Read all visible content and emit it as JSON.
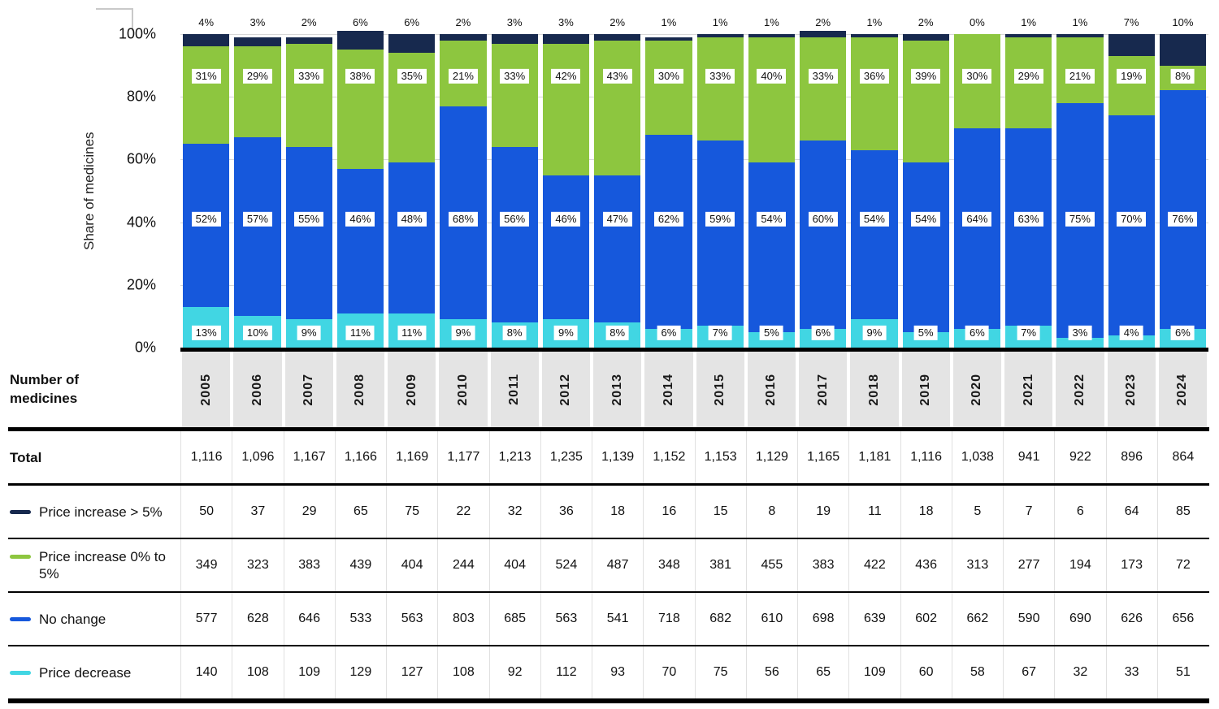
{
  "chart_data": {
    "type": "bar",
    "stacked": true,
    "title": "",
    "xlabel": "",
    "ylabel": "Share of medicines",
    "ylim": [
      0,
      100
    ],
    "ytick_labels": [
      "100%",
      "80%",
      "60%",
      "40%",
      "20%",
      "0%"
    ],
    "grid": true,
    "categories": [
      "2005",
      "2006",
      "2007",
      "2008",
      "2009",
      "2010",
      "2011",
      "2012",
      "2013",
      "2014",
      "2015",
      "2016",
      "2017",
      "2018",
      "2019",
      "2020",
      "2021",
      "2022",
      "2023",
      "2024"
    ],
    "series": [
      {
        "name": "Price decrease",
        "color": "#41d6e3",
        "share_pct": [
          13,
          10,
          9,
          11,
          11,
          9,
          8,
          9,
          8,
          6,
          7,
          5,
          6,
          9,
          5,
          6,
          7,
          3,
          4,
          6
        ],
        "counts": [
          140,
          108,
          109,
          129,
          127,
          108,
          92,
          112,
          93,
          70,
          75,
          56,
          65,
          109,
          60,
          58,
          67,
          32,
          33,
          51
        ]
      },
      {
        "name": "No change",
        "color": "#1658dc",
        "share_pct": [
          52,
          57,
          55,
          46,
          48,
          68,
          56,
          46,
          47,
          62,
          59,
          54,
          60,
          54,
          54,
          64,
          63,
          75,
          70,
          76
        ],
        "counts": [
          577,
          628,
          646,
          533,
          563,
          803,
          685,
          563,
          541,
          718,
          682,
          610,
          698,
          639,
          602,
          662,
          590,
          690,
          626,
          656
        ]
      },
      {
        "name": "Price increase 0% to 5%",
        "color": "#8dc63f",
        "share_pct": [
          31,
          29,
          33,
          38,
          35,
          21,
          33,
          42,
          43,
          30,
          33,
          40,
          33,
          36,
          39,
          30,
          29,
          21,
          19,
          8
        ],
        "counts": [
          349,
          323,
          383,
          439,
          404,
          244,
          404,
          524,
          487,
          348,
          381,
          455,
          383,
          422,
          436,
          313,
          277,
          194,
          173,
          72
        ]
      },
      {
        "name": "Price increase > 5%",
        "color": "#17294e",
        "share_pct": [
          4,
          3,
          2,
          6,
          6,
          2,
          3,
          3,
          2,
          1,
          1,
          1,
          2,
          1,
          2,
          0,
          1,
          1,
          7,
          10
        ],
        "counts": [
          50,
          37,
          29,
          65,
          75,
          22,
          32,
          36,
          18,
          16,
          15,
          8,
          19,
          11,
          18,
          5,
          7,
          6,
          64,
          85
        ]
      }
    ]
  },
  "table": {
    "header_label": "Number of medicines",
    "total_row": {
      "label": "Total",
      "values": [
        "1,116",
        "1,096",
        "1,167",
        "1,166",
        "1,169",
        "1,177",
        "1,213",
        "1,235",
        "1,139",
        "1,152",
        "1,153",
        "1,129",
        "1,165",
        "1,181",
        "1,116",
        "1,038",
        "941",
        "922",
        "896",
        "864"
      ]
    },
    "category_rows_order": [
      "Price increase > 5%",
      "Price increase 0% to 5%",
      "No change",
      "Price decrease"
    ]
  }
}
